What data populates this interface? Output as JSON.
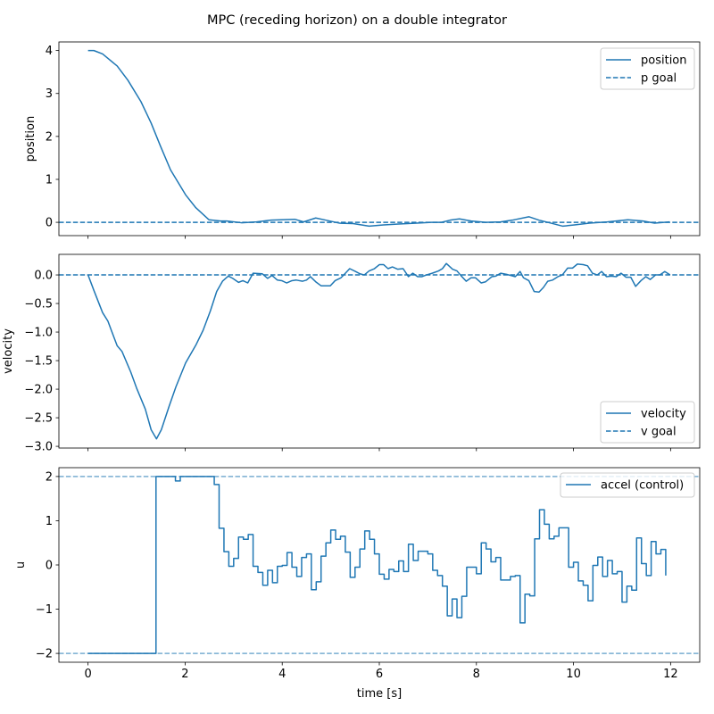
{
  "title": "MPC (receding horizon) on a double integrator",
  "colors": {
    "series": "#1f77b4",
    "axes": "#000000",
    "legend_border": "#cccccc"
  },
  "chart_data": [
    {
      "type": "line",
      "ylabel": "position",
      "xlim": [
        -0.6,
        12.6
      ],
      "ylim": [
        -0.31,
        4.2
      ],
      "xticks": [
        0,
        2,
        4,
        6,
        8,
        10,
        12
      ],
      "show_xticklabels": false,
      "yticks": [
        0,
        1,
        2,
        3,
        4
      ],
      "ytick_labels": [
        "0",
        "1",
        "2",
        "3",
        "4"
      ],
      "grid": false,
      "legend": {
        "placement": "upper right",
        "entries": [
          "position",
          "p goal"
        ]
      },
      "series": [
        {
          "name": "position",
          "style": "solid",
          "x": [
            0,
            0.12,
            0.3,
            0.6,
            0.82,
            1.09,
            1.3,
            1.49,
            1.7,
            2.01,
            2.22,
            2.49,
            2.73,
            2.86,
            3.16,
            3.47,
            3.77,
            4.26,
            4.44,
            4.69,
            4.9,
            5.18,
            5.46,
            5.79,
            6.09,
            6.4,
            6.77,
            7.07,
            7.28,
            7.46,
            7.65,
            7.89,
            8.19,
            8.5,
            8.74,
            9.08,
            9.29,
            9.54,
            9.78,
            10.02,
            10.33,
            10.7,
            11.12,
            11.43,
            11.67,
            11.98
          ],
          "y": [
            4.0,
            4.0,
            3.92,
            3.64,
            3.31,
            2.81,
            2.31,
            1.78,
            1.22,
            0.64,
            0.34,
            0.06,
            0.03,
            0.03,
            -0.01,
            0.01,
            0.05,
            0.07,
            0.01,
            0.1,
            0.05,
            -0.02,
            -0.03,
            -0.09,
            -0.06,
            -0.04,
            -0.02,
            0.0,
            0.0,
            0.05,
            0.08,
            0.03,
            0.0,
            0.01,
            0.05,
            0.13,
            0.05,
            -0.02,
            -0.09,
            -0.06,
            -0.02,
            0.01,
            0.06,
            0.03,
            -0.02,
            0.01
          ]
        },
        {
          "name": "p goal",
          "style": "dashed",
          "hline": 0
        }
      ]
    },
    {
      "type": "line",
      "ylabel": "velocity",
      "xlim": [
        -0.6,
        12.6
      ],
      "ylim": [
        -3.03,
        0.36
      ],
      "xticks": [
        0,
        2,
        4,
        6,
        8,
        10,
        12
      ],
      "show_xticklabels": false,
      "yticks": [
        0.0,
        -0.5,
        -1.0,
        -1.5,
        -2.0,
        -2.5,
        -3.0
      ],
      "ytick_labels": [
        "0.0",
        "−0.5",
        "−1.0",
        "−1.5",
        "−2.0",
        "−2.5",
        "−3.0"
      ],
      "grid": false,
      "legend": {
        "placement": "lower right",
        "entries": [
          "velocity",
          "v goal"
        ]
      },
      "series": [
        {
          "name": "velocity",
          "style": "solid",
          "x": [
            0,
            0.12,
            0.3,
            0.41,
            0.48,
            0.6,
            0.7,
            0.88,
            1.0,
            1.18,
            1.3,
            1.41,
            1.51,
            1.67,
            1.81,
            2.01,
            2.22,
            2.37,
            2.52,
            2.65,
            2.77,
            2.89,
            2.98,
            3.1,
            3.19,
            3.29,
            3.4,
            3.59,
            3.7,
            3.79,
            3.9,
            3.99,
            4.09,
            4.2,
            4.29,
            4.42,
            4.5,
            4.58,
            4.69,
            4.8,
            4.99,
            5.09,
            5.21,
            5.29,
            5.39,
            5.51,
            5.6,
            5.69,
            5.79,
            5.9,
            6.0,
            6.09,
            6.18,
            6.27,
            6.38,
            6.49,
            6.6,
            6.69,
            6.79,
            6.88,
            6.97,
            7.09,
            7.22,
            7.3,
            7.38,
            7.51,
            7.6,
            7.69,
            7.79,
            7.89,
            7.98,
            8.1,
            8.19,
            8.32,
            8.4,
            8.5,
            8.62,
            8.71,
            8.8,
            8.9,
            8.97,
            9.08,
            9.19,
            9.29,
            9.38,
            9.47,
            9.57,
            9.68,
            9.77,
            9.88,
            9.98,
            10.08,
            10.2,
            10.29,
            10.39,
            10.49,
            10.58,
            10.68,
            10.78,
            10.88,
            10.98,
            11.08,
            11.18,
            11.28,
            11.39,
            11.49,
            11.58,
            11.69,
            11.78,
            11.88,
            11.99
          ],
          "y": [
            0,
            -0.27,
            -0.66,
            -0.81,
            -0.97,
            -1.24,
            -1.34,
            -1.7,
            -1.98,
            -2.35,
            -2.71,
            -2.87,
            -2.71,
            -2.3,
            -1.96,
            -1.54,
            -1.23,
            -0.97,
            -0.63,
            -0.29,
            -0.11,
            -0.02,
            -0.06,
            -0.13,
            -0.1,
            -0.14,
            0.03,
            0.02,
            -0.06,
            -0.01,
            -0.09,
            -0.1,
            -0.14,
            -0.1,
            -0.09,
            -0.11,
            -0.09,
            -0.03,
            -0.12,
            -0.19,
            -0.19,
            -0.1,
            -0.05,
            0.02,
            0.11,
            0.06,
            0.02,
            0.0,
            0.07,
            0.11,
            0.18,
            0.18,
            0.11,
            0.14,
            0.1,
            0.11,
            -0.03,
            0.03,
            -0.03,
            -0.03,
            0.0,
            0.03,
            0.07,
            0.11,
            0.2,
            0.1,
            0.07,
            -0.02,
            -0.11,
            -0.05,
            -0.05,
            -0.14,
            -0.12,
            -0.03,
            -0.02,
            0.03,
            0.01,
            -0.01,
            -0.03,
            0.06,
            -0.05,
            -0.1,
            -0.29,
            -0.3,
            -0.22,
            -0.11,
            -0.09,
            -0.03,
            0.0,
            0.12,
            0.12,
            0.19,
            0.18,
            0.16,
            0.03,
            0.0,
            0.06,
            -0.03,
            -0.02,
            -0.03,
            0.03,
            -0.04,
            -0.04,
            -0.2,
            -0.1,
            -0.03,
            -0.08,
            0.0,
            0.0,
            0.06,
            0.0
          ]
        },
        {
          "name": "v goal",
          "style": "dashed",
          "hline": 0
        }
      ]
    },
    {
      "type": "line",
      "ylabel": "u",
      "xlabel": "time [s]",
      "xlim": [
        -0.6,
        12.6
      ],
      "ylim": [
        -2.2,
        2.2
      ],
      "xticks": [
        0,
        2,
        4,
        6,
        8,
        10,
        12
      ],
      "xtick_labels": [
        "0",
        "2",
        "4",
        "6",
        "8",
        "10",
        "12"
      ],
      "show_xticklabels": true,
      "yticks": [
        -2,
        -1,
        0,
        1,
        2
      ],
      "ytick_labels": [
        "−2",
        "−1",
        "0",
        "1",
        "2"
      ],
      "grid": false,
      "legend": {
        "placement": "upper right",
        "entries": [
          "accel (control)"
        ]
      },
      "series": [
        {
          "name": "accel (control)",
          "style": "steps-post",
          "x": [
            0,
            0.1,
            0.2,
            0.3,
            0.4,
            0.5,
            0.6,
            0.7,
            0.8,
            0.9,
            1.0,
            1.1,
            1.2,
            1.3,
            1.4,
            1.5,
            1.6,
            1.7,
            1.8,
            1.9,
            2.0,
            2.1,
            2.2,
            2.3,
            2.4,
            2.5,
            2.6,
            2.7,
            2.8,
            2.9,
            3.0,
            3.1,
            3.2,
            3.3,
            3.4,
            3.5,
            3.6,
            3.7,
            3.8,
            3.9,
            4.0,
            4.1,
            4.2,
            4.3,
            4.4,
            4.5,
            4.6,
            4.7,
            4.8,
            4.9,
            5.0,
            5.1,
            5.2,
            5.3,
            5.4,
            5.5,
            5.6,
            5.7,
            5.8,
            5.9,
            6.0,
            6.1,
            6.2,
            6.3,
            6.4,
            6.5,
            6.6,
            6.7,
            6.8,
            6.9,
            7.0,
            7.1,
            7.2,
            7.3,
            7.4,
            7.5,
            7.6,
            7.7,
            7.8,
            7.9,
            8.0,
            8.1,
            8.2,
            8.3,
            8.4,
            8.5,
            8.6,
            8.7,
            8.8,
            8.9,
            9.0,
            9.1,
            9.2,
            9.3,
            9.4,
            9.5,
            9.6,
            9.7,
            9.8,
            9.9,
            10.0,
            10.1,
            10.2,
            10.3,
            10.4,
            10.5,
            10.6,
            10.7,
            10.8,
            10.9,
            11.0,
            11.1,
            11.2,
            11.3,
            11.4,
            11.5,
            11.6,
            11.7,
            11.8,
            11.9
          ],
          "y": [
            -2,
            -2,
            -2,
            -2,
            -2,
            -2,
            -2,
            -2,
            -2,
            -2,
            -2,
            -2,
            -2,
            -2,
            2,
            2,
            2,
            2,
            1.9,
            2,
            2,
            2,
            2,
            2,
            2,
            2,
            1.82,
            0.83,
            0.3,
            -0.03,
            0.15,
            0.63,
            0.58,
            0.69,
            -0.03,
            -0.17,
            -0.46,
            -0.12,
            -0.4,
            -0.03,
            -0.01,
            0.28,
            -0.05,
            -0.26,
            0.17,
            0.25,
            -0.56,
            -0.38,
            0.2,
            0.5,
            0.79,
            0.58,
            0.65,
            0.29,
            -0.28,
            -0.05,
            0.36,
            0.77,
            0.58,
            0.25,
            -0.21,
            -0.32,
            -0.1,
            -0.15,
            0.09,
            -0.15,
            0.47,
            0.1,
            0.31,
            0.31,
            0.25,
            -0.12,
            -0.24,
            -0.48,
            -1.15,
            -0.77,
            -1.19,
            -0.71,
            -0.05,
            -0.05,
            -0.2,
            0.5,
            0.36,
            0.07,
            0.17,
            -0.34,
            -0.34,
            -0.26,
            -0.24,
            -1.31,
            -0.66,
            -0.7,
            0.59,
            1.25,
            0.92,
            0.59,
            0.65,
            0.84,
            0.84,
            -0.05,
            0.06,
            -0.36,
            -0.46,
            -0.81,
            -0.01,
            0.18,
            -0.26,
            0.1,
            -0.2,
            -0.15,
            -0.84,
            -0.48,
            -0.57,
            0.61,
            0.03,
            -0.24,
            0.53,
            0.25,
            0.35,
            -0.24
          ]
        },
        {
          "name": "",
          "style": "dashed-light",
          "hline": 2
        },
        {
          "name": "",
          "style": "dashed-light",
          "hline": -2
        }
      ]
    }
  ]
}
